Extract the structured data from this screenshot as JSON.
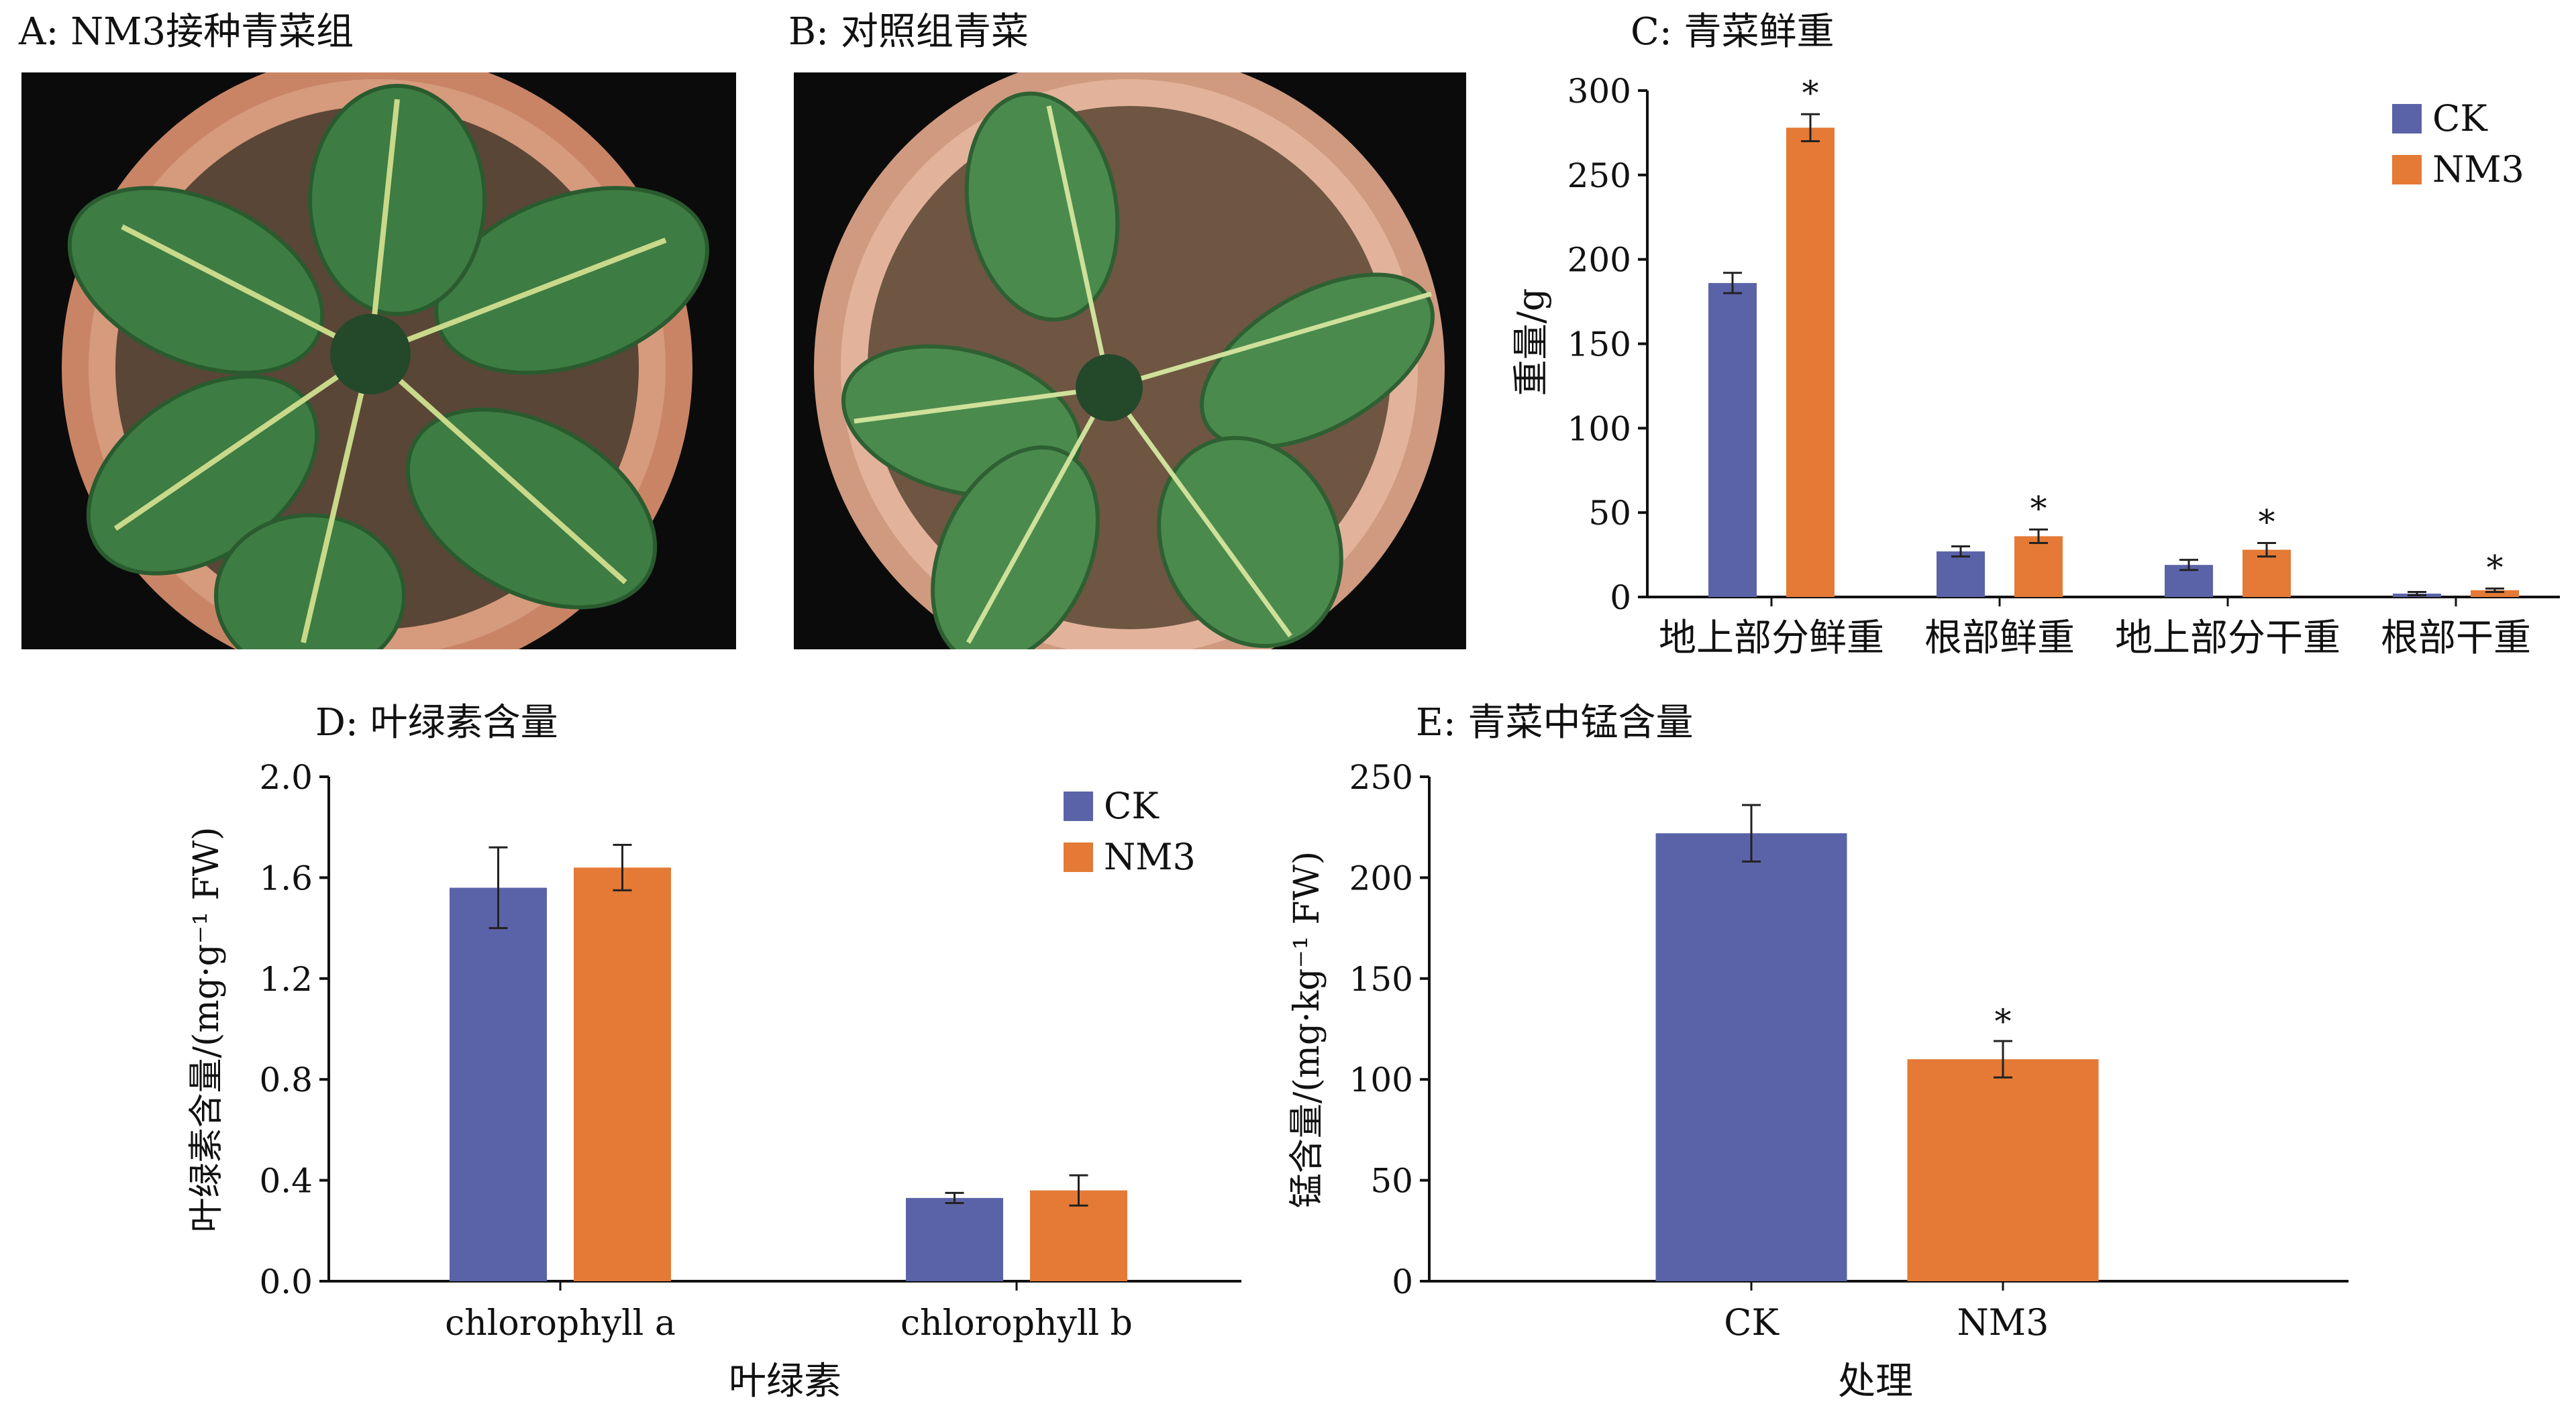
{
  "panels": {
    "a_title": "A: NM3接种青菜组",
    "b_title": "B: 对照组青菜",
    "c_title": "C: 青菜鲜重",
    "d_title": "D: 叶绿素含量",
    "e_title": "E: 青菜中锰含量"
  },
  "colors": {
    "ck": "#5b63a8",
    "nm3": "#e47a35",
    "pot": "#c97d5f",
    "leaf": "#3f7f45"
  },
  "chart_data": [
    {
      "id": "C",
      "type": "bar",
      "title": "C: 青菜鲜重",
      "ylabel": "重量/g",
      "xlabel": "",
      "ylim": [
        0,
        300
      ],
      "yticks": [
        0,
        50,
        100,
        150,
        200,
        250,
        300
      ],
      "categories": [
        "地上部分鲜重",
        "根部鲜重",
        "地上部分干重",
        "根部干重"
      ],
      "series": [
        {
          "name": "CK",
          "values": [
            186,
            27,
            19,
            2
          ],
          "errors": [
            6,
            3,
            3,
            1
          ]
        },
        {
          "name": "NM3",
          "values": [
            278,
            36,
            28,
            4
          ],
          "errors": [
            8,
            4,
            4,
            1
          ]
        }
      ],
      "significance": [
        "*",
        "*",
        "*",
        "*"
      ],
      "legend": "top-right"
    },
    {
      "id": "D",
      "type": "bar",
      "title": "D: 叶绿素含量",
      "ylabel": "叶绿素含量/(mg·g⁻¹ FW)",
      "xlabel": "叶绿素",
      "ylim": [
        0,
        2.0
      ],
      "yticks": [
        "0.0",
        "0.4",
        "0.8",
        "1.2",
        "1.6",
        "2.0"
      ],
      "categories": [
        "chlorophyll a",
        "chlorophyll b"
      ],
      "series": [
        {
          "name": "CK",
          "values": [
            1.56,
            0.33
          ],
          "errors": [
            0.16,
            0.02
          ]
        },
        {
          "name": "NM3",
          "values": [
            1.64,
            0.36
          ],
          "errors": [
            0.09,
            0.06
          ]
        }
      ],
      "legend": "top-right"
    },
    {
      "id": "E",
      "type": "bar",
      "title": "E: 青菜中锰含量",
      "ylabel": "锰含量/(mg·kg⁻¹ FW)",
      "xlabel": "处理",
      "ylim": [
        0,
        250
      ],
      "yticks": [
        0,
        50,
        100,
        150,
        200,
        250
      ],
      "categories": [
        "CK",
        "NM3"
      ],
      "values": [
        222,
        110
      ],
      "errors": [
        14,
        9
      ],
      "significance": [
        "",
        "*"
      ]
    }
  ]
}
